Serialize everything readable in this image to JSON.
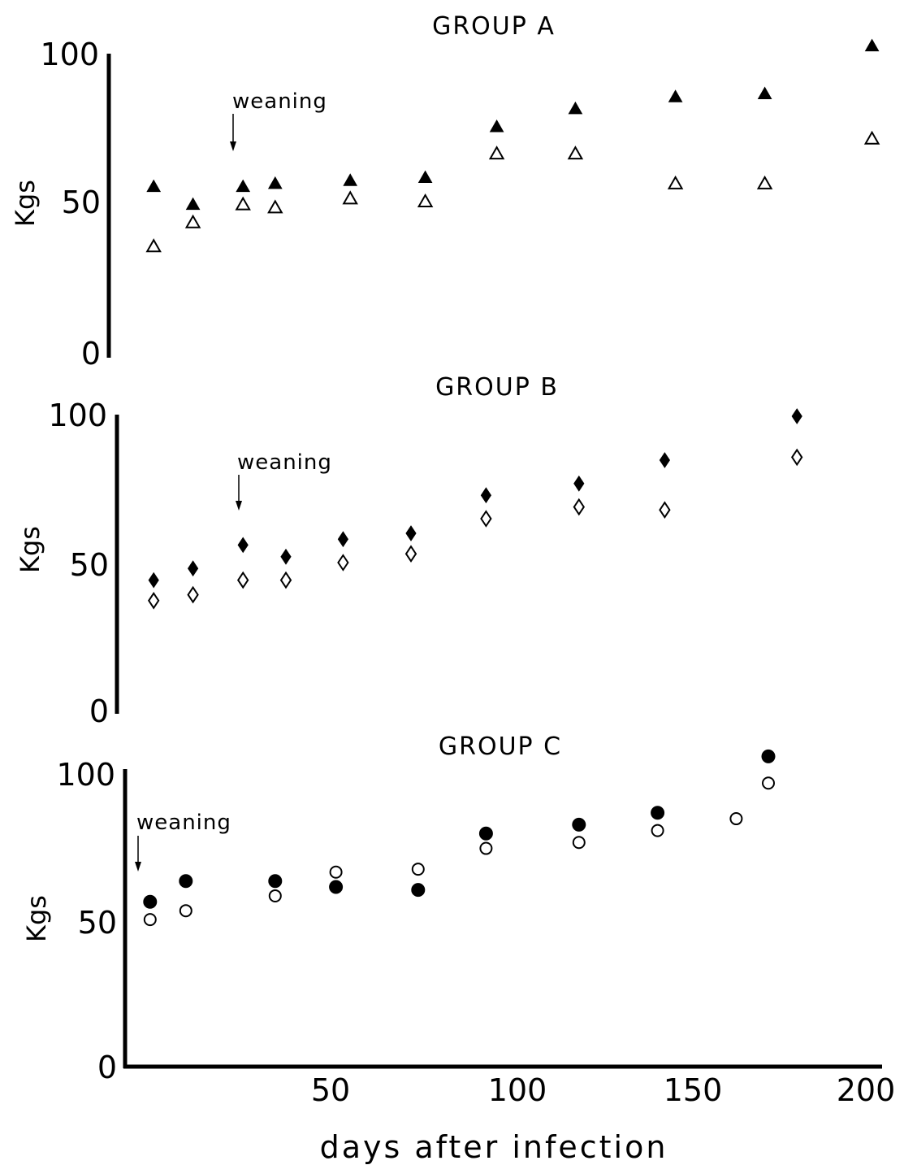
{
  "chart_data": [
    {
      "type": "scatter",
      "title": "GROUP A",
      "ylabel": "Kgs",
      "ylim": [
        0,
        100
      ],
      "xlim": [
        0,
        200
      ],
      "yticks": [
        "0",
        "50",
        "100"
      ],
      "annotation": {
        "text": "weaning",
        "x": 35
      },
      "series": [
        {
          "marker": "triangle",
          "filled": true,
          "x": [
            3,
            14,
            28,
            37,
            58,
            79,
            99,
            121,
            149,
            174,
            204
          ],
          "y": [
            55,
            49,
            55,
            56,
            57,
            58,
            75,
            81,
            85,
            86,
            102
          ]
        },
        {
          "marker": "triangle",
          "filled": false,
          "x": [
            3,
            14,
            28,
            37,
            58,
            79,
            99,
            121,
            149,
            174,
            204
          ],
          "y": [
            35,
            43,
            49,
            48,
            51,
            50,
            66,
            66,
            56,
            56,
            71
          ]
        }
      ]
    },
    {
      "type": "scatter",
      "title": "GROUP B",
      "ylabel": "Kgs",
      "ylim": [
        0,
        100
      ],
      "xlim": [
        0,
        200
      ],
      "yticks": [
        "0",
        "50",
        "100"
      ],
      "annotation": {
        "text": "weaning",
        "x": 38
      },
      "series": [
        {
          "marker": "diamond",
          "filled": true,
          "x": [
            3,
            14,
            28,
            40,
            56,
            75,
            96,
            122,
            146,
            183
          ],
          "y": [
            44,
            48,
            56,
            52,
            58,
            60,
            73,
            77,
            85,
            100
          ]
        },
        {
          "marker": "diamond",
          "filled": false,
          "x": [
            3,
            14,
            28,
            40,
            56,
            75,
            96,
            122,
            146,
            183
          ],
          "y": [
            37,
            39,
            44,
            44,
            50,
            53,
            65,
            69,
            68,
            86
          ]
        }
      ]
    },
    {
      "type": "scatter",
      "title": "GROUP C",
      "ylabel": "Kgs",
      "ylim": [
        0,
        100
      ],
      "xlim": [
        0,
        200
      ],
      "yticks": [
        "0",
        "50",
        "100"
      ],
      "xticks": [
        "50",
        "100",
        "150",
        "200"
      ],
      "xlabel": "days after infection",
      "annotation": {
        "text": "weaning",
        "x": 4
      },
      "series": [
        {
          "marker": "circle",
          "filled": true,
          "x": [
            2,
            12,
            37,
            54,
            77,
            96,
            122,
            144,
            175
          ],
          "y": [
            55,
            62,
            62,
            60,
            59,
            78,
            81,
            85,
            104
          ]
        },
        {
          "marker": "circle",
          "filled": false,
          "x": [
            2,
            12,
            37,
            54,
            77,
            96,
            122,
            144,
            166,
            175
          ],
          "y": [
            49,
            52,
            57,
            65,
            66,
            73,
            75,
            79,
            83,
            95
          ]
        }
      ]
    }
  ]
}
